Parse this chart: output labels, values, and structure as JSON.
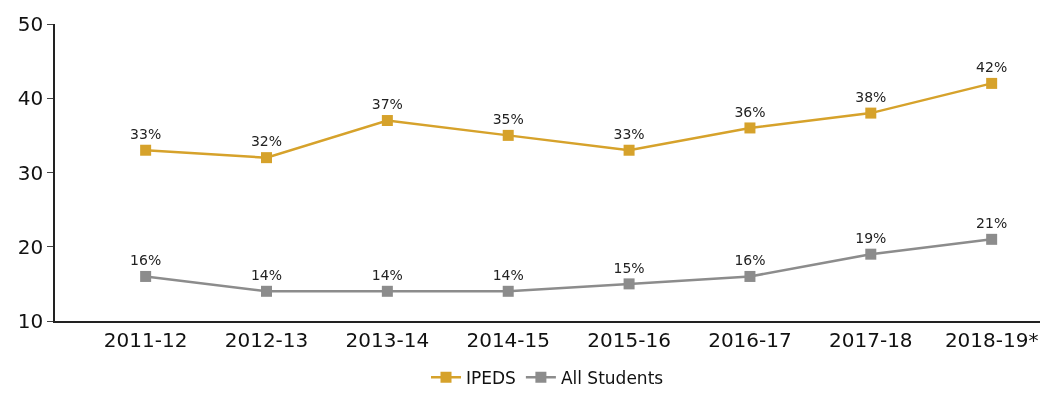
{
  "chart_data": {
    "type": "line",
    "categories": [
      "2011-12",
      "2012-13",
      "2013-14",
      "2014-15",
      "2015-16",
      "2016-17",
      "2017-18",
      "2018-19*"
    ],
    "series": [
      {
        "name": "IPEDS",
        "color": "#d6a22b",
        "values": [
          33,
          32,
          37,
          35,
          33,
          36,
          38,
          42
        ],
        "value_labels": [
          "33%",
          "32%",
          "37%",
          "35%",
          "33%",
          "36%",
          "38%",
          "42%"
        ]
      },
      {
        "name": "All Students",
        "color": "#8c8c8c",
        "values": [
          16,
          14,
          14,
          14,
          15,
          16,
          19,
          21
        ],
        "value_labels": [
          "16%",
          "14%",
          "14%",
          "14%",
          "15%",
          "16%",
          "19%",
          "21%"
        ]
      }
    ],
    "ylim": [
      10,
      50
    ],
    "yticks": [
      10,
      20,
      30,
      40,
      50
    ],
    "legend": "bottom",
    "marker": "square",
    "line_style": "solid"
  }
}
